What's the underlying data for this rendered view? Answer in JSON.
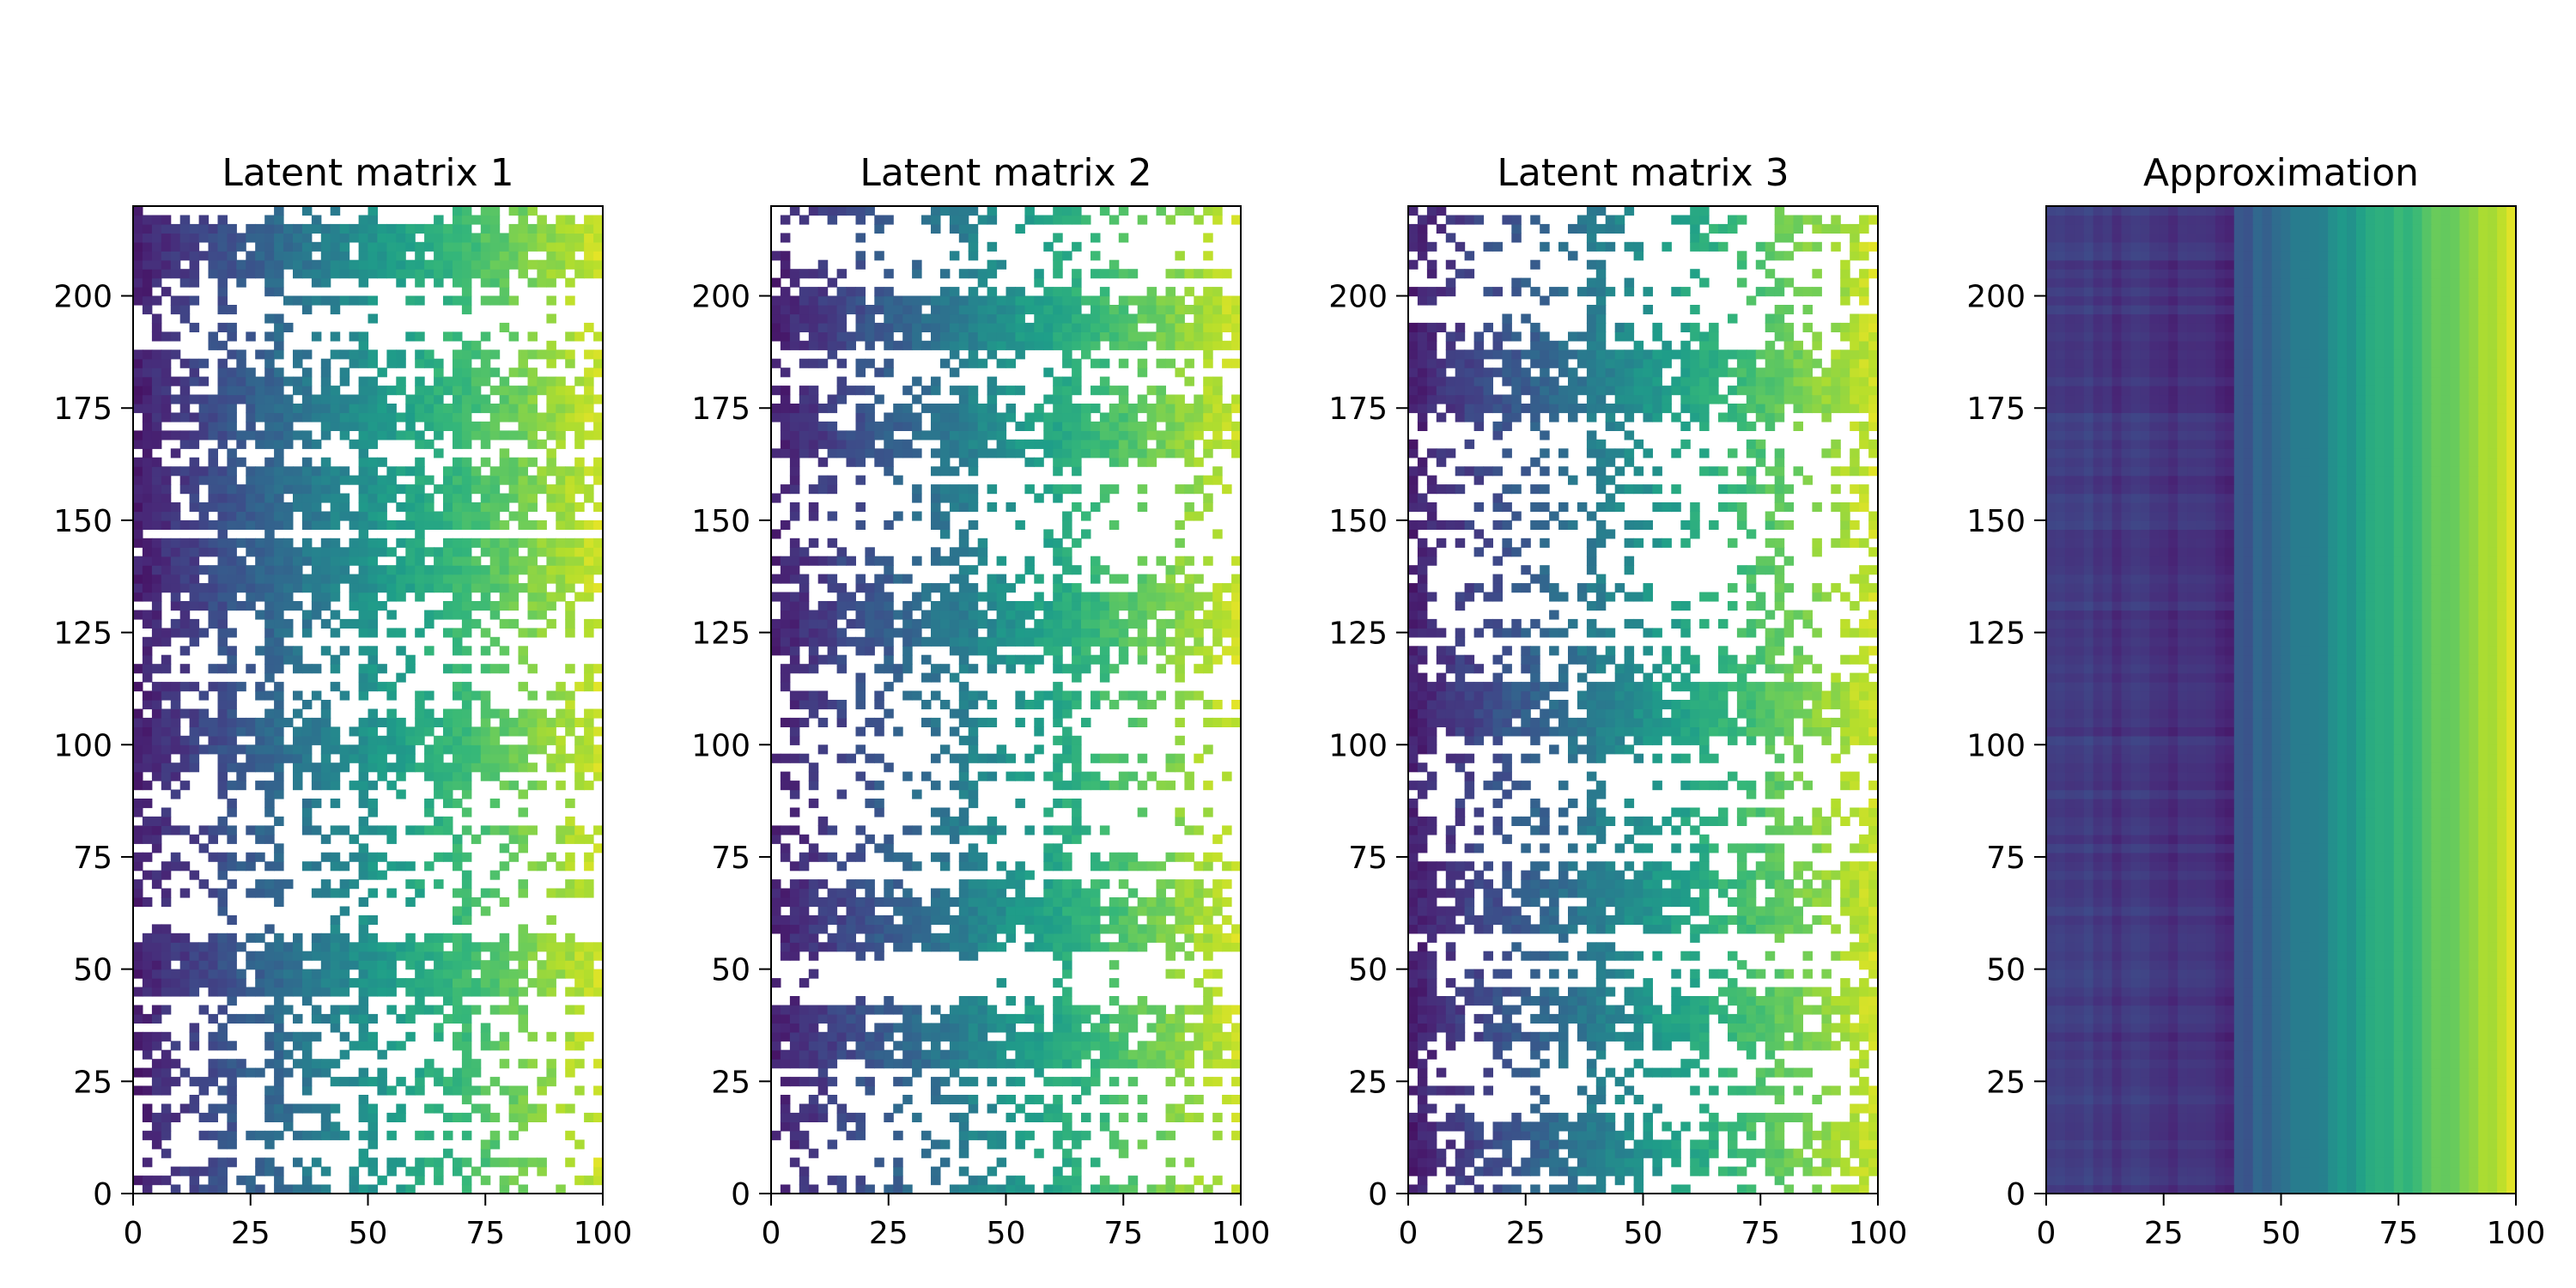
{
  "chart_data": [
    {
      "type": "heatmap",
      "title": "Latent matrix 1",
      "xlim": [
        0,
        100
      ],
      "ylim": [
        0,
        220
      ],
      "xticks": [
        "0",
        "25",
        "50",
        "75",
        "100"
      ],
      "yticks": [
        "0",
        "25",
        "50",
        "75",
        "100",
        "125",
        "150",
        "175",
        "200"
      ],
      "colormap": "viridis",
      "missing": "white",
      "grid": false,
      "density": 0.55,
      "row_weights": [
        [
          50,
          0.8
        ],
        [
          100,
          0.75
        ],
        [
          140,
          0.85
        ],
        [
          155,
          0.75
        ],
        [
          210,
          0.9
        ],
        [
          175,
          0.6
        ]
      ],
      "col_weights": [
        [
          5,
          0.6
        ],
        [
          20,
          0.75
        ],
        [
          30,
          0.75
        ],
        [
          50,
          0.7
        ],
        [
          70,
          0.75
        ]
      ],
      "seed": 11
    },
    {
      "type": "heatmap",
      "title": "Latent matrix 2",
      "xlim": [
        0,
        100
      ],
      "ylim": [
        0,
        220
      ],
      "xticks": [
        "0",
        "25",
        "50",
        "75",
        "100"
      ],
      "yticks": [
        "0",
        "25",
        "50",
        "75",
        "100",
        "125",
        "150",
        "175",
        "200"
      ],
      "colormap": "viridis",
      "missing": "white",
      "grid": false,
      "density": 0.38,
      "row_weights": [
        [
          194,
          0.9
        ],
        [
          170,
          0.7
        ],
        [
          128,
          0.7
        ],
        [
          60,
          0.65
        ],
        [
          35,
          0.65
        ]
      ],
      "col_weights": [
        [
          4,
          0.6
        ],
        [
          42,
          0.8
        ],
        [
          63,
          0.85
        ]
      ],
      "seed": 23
    },
    {
      "type": "heatmap",
      "title": "Latent matrix 3",
      "xlim": [
        0,
        100
      ],
      "ylim": [
        0,
        220
      ],
      "xticks": [
        "0",
        "25",
        "50",
        "75",
        "100"
      ],
      "yticks": [
        "0",
        "25",
        "50",
        "75",
        "100",
        "125",
        "150",
        "175",
        "200"
      ],
      "colormap": "viridis",
      "missing": "white",
      "grid": false,
      "density": 0.4,
      "row_weights": [
        [
          181,
          0.85
        ],
        [
          108,
          0.9
        ],
        [
          10,
          0.55
        ],
        [
          65,
          0.5
        ],
        [
          40,
          0.55
        ]
      ],
      "col_weights": [
        [
          3,
          0.65
        ],
        [
          40,
          0.9
        ],
        [
          78,
          0.6
        ],
        [
          97,
          0.6
        ]
      ],
      "seed": 37
    },
    {
      "type": "heatmap",
      "title": "Approximation",
      "xlim": [
        0,
        100
      ],
      "ylim": [
        0,
        220
      ],
      "xticks": [
        "0",
        "25",
        "50",
        "75",
        "100"
      ],
      "yticks": [
        "0",
        "25",
        "50",
        "75",
        "100",
        "125",
        "150",
        "175",
        "200"
      ],
      "colormap": "viridis",
      "missing": "white",
      "grid": false,
      "density": 1.0,
      "row_weights": [],
      "col_weights": [],
      "seed": 51
    }
  ]
}
